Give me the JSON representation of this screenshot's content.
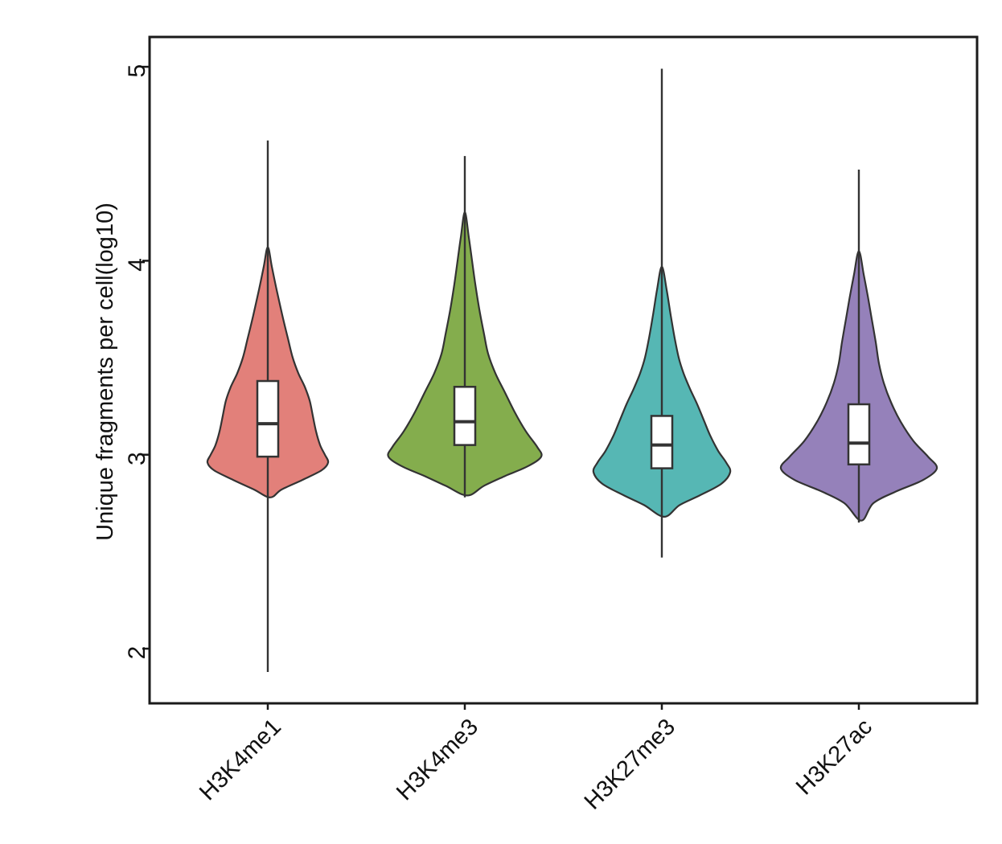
{
  "figure": {
    "background": "#ffffff",
    "frame_color": "#1a1a1a",
    "outline_color": "#333333",
    "box_fill": "#ffffff",
    "text_color": "#111111"
  },
  "chart_data": {
    "type": "violin",
    "title": "",
    "xlabel": "",
    "ylabel": "Unique fragments per cell(log10)",
    "y_ticks": [
      2,
      3,
      4,
      5
    ],
    "y_range": [
      1.72,
      5.15
    ],
    "grid": false,
    "legend": "none",
    "x_label_rotation_deg": 45,
    "categories": [
      "H3K4me1",
      "H3K4me3",
      "H3K27me3",
      "H3K27ac"
    ],
    "series": [
      {
        "label": "H3K4me1",
        "fill_color": "#E2807A",
        "stats": {
          "whisker_low": 1.88,
          "q1": 2.99,
          "median": 3.16,
          "q3": 3.38,
          "whisker_high": 4.62,
          "violin_top": 4.07,
          "violin_bottom": 2.78
        },
        "density_profile": [
          [
            4.07,
            0
          ],
          [
            3.97,
            5
          ],
          [
            3.85,
            11
          ],
          [
            3.72,
            18
          ],
          [
            3.6,
            25
          ],
          [
            3.5,
            31
          ],
          [
            3.42,
            38
          ],
          [
            3.35,
            46
          ],
          [
            3.28,
            52
          ],
          [
            3.2,
            56
          ],
          [
            3.12,
            60
          ],
          [
            3.05,
            65
          ],
          [
            3.0,
            71
          ],
          [
            2.96,
            75
          ],
          [
            2.92,
            67
          ],
          [
            2.87,
            43
          ],
          [
            2.82,
            17
          ],
          [
            2.78,
            3
          ]
        ]
      },
      {
        "label": "H3K4me3",
        "fill_color": "#84AD4D",
        "stats": {
          "whisker_low": 2.78,
          "q1": 3.05,
          "median": 3.17,
          "q3": 3.35,
          "whisker_high": 4.54,
          "violin_top": 4.25,
          "violin_bottom": 2.79
        },
        "density_profile": [
          [
            4.25,
            0
          ],
          [
            4.12,
            5
          ],
          [
            4.0,
            9
          ],
          [
            3.88,
            13
          ],
          [
            3.75,
            18
          ],
          [
            3.62,
            24
          ],
          [
            3.52,
            29
          ],
          [
            3.42,
            38
          ],
          [
            3.32,
            50
          ],
          [
            3.22,
            62
          ],
          [
            3.12,
            76
          ],
          [
            3.04,
            90
          ],
          [
            2.99,
            95
          ],
          [
            2.94,
            78
          ],
          [
            2.89,
            50
          ],
          [
            2.84,
            24
          ],
          [
            2.79,
            3
          ]
        ]
      },
      {
        "label": "H3K27me3",
        "fill_color": "#56B7B4",
        "stats": {
          "whisker_low": 2.47,
          "q1": 2.93,
          "median": 3.05,
          "q3": 3.2,
          "whisker_high": 4.99,
          "violin_top": 3.97,
          "violin_bottom": 2.68
        },
        "density_profile": [
          [
            3.97,
            0
          ],
          [
            3.85,
            6
          ],
          [
            3.72,
            11
          ],
          [
            3.6,
            16
          ],
          [
            3.5,
            21
          ],
          [
            3.42,
            27
          ],
          [
            3.34,
            35
          ],
          [
            3.26,
            44
          ],
          [
            3.18,
            52
          ],
          [
            3.1,
            60
          ],
          [
            3.02,
            70
          ],
          [
            2.96,
            80
          ],
          [
            2.91,
            85
          ],
          [
            2.85,
            74
          ],
          [
            2.79,
            47
          ],
          [
            2.74,
            22
          ],
          [
            2.68,
            3
          ]
        ]
      },
      {
        "label": "H3K27ac",
        "fill_color": "#9581BA",
        "stats": {
          "whisker_low": 2.65,
          "q1": 2.95,
          "median": 3.06,
          "q3": 3.26,
          "whisker_high": 4.47,
          "violin_top": 4.05,
          "violin_bottom": 2.66
        },
        "density_profile": [
          [
            4.05,
            0
          ],
          [
            3.93,
            6
          ],
          [
            3.82,
            11
          ],
          [
            3.7,
            16
          ],
          [
            3.58,
            21
          ],
          [
            3.47,
            25
          ],
          [
            3.37,
            31
          ],
          [
            3.27,
            40
          ],
          [
            3.17,
            52
          ],
          [
            3.07,
            68
          ],
          [
            2.99,
            86
          ],
          [
            2.93,
            97
          ],
          [
            2.87,
            80
          ],
          [
            2.81,
            46
          ],
          [
            2.75,
            18
          ],
          [
            2.66,
            3
          ]
        ]
      }
    ]
  }
}
